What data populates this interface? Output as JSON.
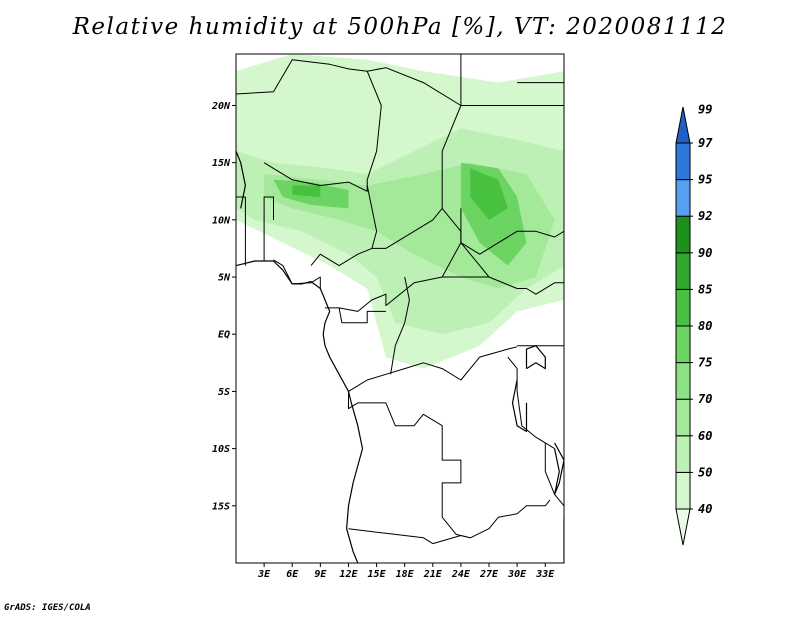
{
  "title": "Relative humidity at 500hPa [%], VT: 2020081112",
  "credit": "GrADS: IGES/COLA",
  "colors": {
    "coastline": "#000000",
    "background": "#ffffff"
  },
  "map": {
    "projection": "lat-lon",
    "lon_range": [
      0,
      35
    ],
    "lat_range": [
      -20,
      24.5
    ],
    "lon_ticks": [
      {
        "value": 3,
        "label": "3E"
      },
      {
        "value": 6,
        "label": "6E"
      },
      {
        "value": 9,
        "label": "9E"
      },
      {
        "value": 12,
        "label": "12E"
      },
      {
        "value": 15,
        "label": "15E"
      },
      {
        "value": 18,
        "label": "18E"
      },
      {
        "value": 21,
        "label": "21E"
      },
      {
        "value": 24,
        "label": "24E"
      },
      {
        "value": 27,
        "label": "27E"
      },
      {
        "value": 30,
        "label": "30E"
      },
      {
        "value": 33,
        "label": "33E"
      }
    ],
    "lat_ticks": [
      {
        "value": 20,
        "label": "20N"
      },
      {
        "value": 15,
        "label": "15N"
      },
      {
        "value": 10,
        "label": "10N"
      },
      {
        "value": 5,
        "label": "5N"
      },
      {
        "value": 0,
        "label": "EQ"
      },
      {
        "value": -5,
        "label": "5S"
      },
      {
        "value": -10,
        "label": "10S"
      },
      {
        "value": -15,
        "label": "15S"
      }
    ],
    "humidity_zones": [
      {
        "level": 50,
        "points": [
          [
            0,
            23
          ],
          [
            6,
            24.5
          ],
          [
            14,
            24
          ],
          [
            20,
            23
          ],
          [
            28,
            22
          ],
          [
            35,
            23
          ],
          [
            35,
            3
          ],
          [
            30,
            2
          ],
          [
            26,
            -1
          ],
          [
            20,
            -3
          ],
          [
            16,
            -2
          ],
          [
            14,
            4
          ],
          [
            10,
            6
          ],
          [
            5,
            8
          ],
          [
            0,
            10
          ]
        ]
      },
      {
        "level": 60,
        "points": [
          [
            0,
            16
          ],
          [
            4,
            15
          ],
          [
            10,
            14.5
          ],
          [
            14,
            14
          ],
          [
            19,
            16
          ],
          [
            24,
            18
          ],
          [
            30,
            17
          ],
          [
            35,
            16
          ],
          [
            35,
            6
          ],
          [
            31,
            4
          ],
          [
            27,
            1
          ],
          [
            22,
            0
          ],
          [
            17,
            1
          ],
          [
            15,
            5
          ],
          [
            12,
            7
          ],
          [
            7,
            9
          ],
          [
            2,
            10
          ],
          [
            0,
            11
          ]
        ]
      },
      {
        "level": 70,
        "points": [
          [
            3,
            14
          ],
          [
            9,
            13.5
          ],
          [
            14,
            13
          ],
          [
            20,
            14
          ],
          [
            25,
            15
          ],
          [
            31,
            14
          ],
          [
            34,
            10
          ],
          [
            32,
            5
          ],
          [
            28,
            4
          ],
          [
            24,
            5
          ],
          [
            19,
            7
          ],
          [
            15,
            9
          ],
          [
            11,
            10
          ],
          [
            6,
            11
          ],
          [
            3,
            12
          ]
        ]
      },
      {
        "level": 80,
        "points": [
          [
            4,
            13.5
          ],
          [
            8,
            13.3
          ],
          [
            12,
            12.6
          ],
          [
            12,
            11
          ],
          [
            8,
            11.3
          ],
          [
            5,
            12
          ]
        ]
      },
      {
        "level": 80,
        "points": [
          [
            24,
            15
          ],
          [
            28,
            14.5
          ],
          [
            30,
            12
          ],
          [
            31,
            8
          ],
          [
            29,
            6
          ],
          [
            26,
            8
          ],
          [
            24,
            11
          ]
        ]
      },
      {
        "level": 85,
        "points": [
          [
            25,
            14.5
          ],
          [
            28,
            13.5
          ],
          [
            29,
            11
          ],
          [
            27,
            10
          ],
          [
            25,
            12
          ]
        ]
      },
      {
        "level": 85,
        "points": [
          [
            6,
            13
          ],
          [
            9,
            13
          ],
          [
            9,
            12
          ],
          [
            6,
            12.2
          ]
        ]
      }
    ],
    "borders": [
      [
        [
          0,
          21
        ],
        [
          4,
          21.2
        ],
        [
          6,
          24
        ],
        [
          10,
          23.6
        ],
        [
          12,
          23.2
        ],
        [
          14,
          23
        ],
        [
          16,
          23.3
        ],
        [
          20,
          22
        ],
        [
          24,
          20
        ],
        [
          24,
          24.5
        ]
      ],
      [
        [
          3,
          15
        ],
        [
          6,
          13.5
        ],
        [
          9,
          13
        ],
        [
          12,
          13.3
        ],
        [
          14,
          12.5
        ],
        [
          14,
          13.5
        ],
        [
          15,
          16
        ],
        [
          15.5,
          20
        ],
        [
          14,
          23
        ]
      ],
      [
        [
          4,
          10
        ],
        [
          4,
          12
        ],
        [
          3,
          12
        ],
        [
          3,
          6.4
        ]
      ],
      [
        [
          1,
          6
        ],
        [
          1,
          12
        ],
        [
          0,
          12
        ]
      ],
      [
        [
          4,
          6.5
        ],
        [
          5,
          6
        ],
        [
          6,
          4.4
        ],
        [
          8,
          4.5
        ],
        [
          9,
          5
        ],
        [
          9,
          4
        ]
      ],
      [
        [
          14,
          13
        ],
        [
          14.5,
          11
        ],
        [
          15,
          9
        ],
        [
          14.5,
          7.5
        ],
        [
          13,
          7
        ],
        [
          11,
          6
        ],
        [
          9,
          7
        ],
        [
          8,
          6
        ]
      ],
      [
        [
          14.5,
          7.5
        ],
        [
          16,
          7.5
        ],
        [
          17,
          8
        ],
        [
          19,
          9
        ],
        [
          21,
          10
        ],
        [
          22,
          11
        ],
        [
          23,
          10
        ],
        [
          24,
          9
        ],
        [
          24,
          8
        ],
        [
          26,
          6
        ],
        [
          27,
          5
        ]
      ],
      [
        [
          24,
          20
        ],
        [
          22,
          16
        ],
        [
          22,
          12.5
        ],
        [
          22,
          11
        ]
      ],
      [
        [
          24,
          11
        ],
        [
          24,
          8
        ],
        [
          22,
          5
        ],
        [
          19,
          4.5
        ],
        [
          16,
          2.5
        ],
        [
          16,
          3.5
        ],
        [
          14.5,
          3
        ],
        [
          13,
          2
        ],
        [
          11,
          2.3
        ],
        [
          9.5,
          2.3
        ]
      ],
      [
        [
          22,
          5
        ],
        [
          25,
          5
        ],
        [
          27,
          5
        ],
        [
          30,
          4
        ],
        [
          31,
          4
        ],
        [
          32,
          3.5
        ],
        [
          34,
          4.5
        ],
        [
          35,
          4.5
        ]
      ],
      [
        [
          24,
          8
        ],
        [
          26,
          7
        ],
        [
          28,
          8
        ],
        [
          30,
          9
        ],
        [
          32,
          9
        ],
        [
          34,
          8.5
        ],
        [
          35,
          9
        ]
      ],
      [
        [
          24,
          20
        ],
        [
          30,
          20
        ],
        [
          35,
          20
        ],
        [
          35,
          24.5
        ]
      ],
      [
        [
          30,
          22
        ],
        [
          35,
          22
        ]
      ],
      [
        [
          12,
          -5
        ],
        [
          14,
          -4
        ],
        [
          16,
          -3.5
        ],
        [
          18,
          -3
        ],
        [
          20,
          -2.5
        ],
        [
          22,
          -3
        ],
        [
          24,
          -4
        ],
        [
          26,
          -2
        ],
        [
          29,
          -1.3
        ],
        [
          30,
          -1.1
        ]
      ],
      [
        [
          12,
          -5
        ],
        [
          12,
          -6.5
        ],
        [
          13,
          -6
        ],
        [
          16,
          -6
        ],
        [
          17,
          -8
        ],
        [
          19,
          -8
        ],
        [
          20,
          -7
        ],
        [
          22,
          -8
        ],
        [
          22,
          -11
        ],
        [
          24,
          -11
        ],
        [
          24,
          -13
        ],
        [
          22,
          -13
        ],
        [
          22,
          -16
        ],
        [
          23.5,
          -17.5
        ],
        [
          25,
          -17.8
        ]
      ],
      [
        [
          12,
          -17
        ],
        [
          16,
          -17.4
        ],
        [
          20,
          -17.8
        ],
        [
          21,
          -18.3
        ],
        [
          24,
          -17.6
        ],
        [
          25,
          -17.8
        ],
        [
          27,
          -17
        ],
        [
          28,
          -16
        ],
        [
          30,
          -15.7
        ]
      ],
      [
        [
          29,
          -2
        ],
        [
          30,
          -3
        ],
        [
          30,
          -5
        ],
        [
          30.5,
          -8
        ],
        [
          32,
          -9
        ],
        [
          33,
          -9.5
        ],
        [
          34,
          -10
        ]
      ],
      [
        [
          30,
          -1
        ],
        [
          31,
          -1
        ],
        [
          34,
          -1
        ],
        [
          35,
          -1
        ]
      ],
      [
        [
          33,
          -9.5
        ],
        [
          33,
          -12
        ],
        [
          34,
          -14
        ],
        [
          35,
          -15
        ]
      ],
      [
        [
          30,
          -15.7
        ],
        [
          31,
          -15
        ],
        [
          33,
          -15
        ],
        [
          33.5,
          -14.5
        ]
      ],
      [
        [
          11,
          2.3
        ],
        [
          11.3,
          1
        ],
        [
          14,
          1
        ],
        [
          14,
          2
        ],
        [
          16,
          2
        ]
      ],
      [
        [
          18,
          5
        ],
        [
          18.5,
          3
        ],
        [
          18,
          1
        ],
        [
          17,
          -1
        ],
        [
          16.5,
          -3.5
        ]
      ]
    ],
    "coastline": [
      [
        [
          0,
          6
        ],
        [
          1,
          6.2
        ],
        [
          2,
          6.4
        ],
        [
          4,
          6.4
        ],
        [
          5,
          5.6
        ],
        [
          6,
          4.4
        ],
        [
          7,
          4.4
        ],
        [
          8,
          4.6
        ],
        [
          9,
          4
        ],
        [
          9.5,
          3
        ],
        [
          10,
          2
        ],
        [
          9.5,
          1
        ],
        [
          9.3,
          0
        ],
        [
          9.5,
          -1
        ],
        [
          10,
          -2
        ],
        [
          11,
          -3.5
        ],
        [
          12,
          -5
        ],
        [
          12.3,
          -6
        ],
        [
          13,
          -8
        ],
        [
          13.5,
          -10
        ],
        [
          12.5,
          -13
        ],
        [
          12,
          -15
        ],
        [
          11.8,
          -17
        ],
        [
          12.5,
          -19
        ],
        [
          13,
          -20
        ]
      ],
      [
        [
          0,
          16
        ],
        [
          0.5,
          15
        ],
        [
          1,
          13
        ],
        [
          0.5,
          11
        ]
      ],
      [
        [
          35,
          -20
        ],
        [
          35,
          -16
        ]
      ],
      [
        [
          31,
          -3
        ],
        [
          32,
          -2.5
        ],
        [
          33,
          -3
        ],
        [
          33,
          -2
        ],
        [
          32,
          -1
        ],
        [
          31,
          -1.3
        ],
        [
          31,
          -3
        ]
      ],
      [
        [
          30,
          -4
        ],
        [
          29.5,
          -6
        ],
        [
          30,
          -8
        ],
        [
          31,
          -8.5
        ],
        [
          31,
          -6
        ]
      ],
      [
        [
          34,
          -9.5
        ],
        [
          35,
          -11
        ],
        [
          34.5,
          -13
        ],
        [
          34,
          -14
        ],
        [
          34.5,
          -12
        ],
        [
          34,
          -10
        ]
      ]
    ]
  },
  "colorbar": {
    "levels": [
      {
        "label": "40",
        "color": "#eafbe7"
      },
      {
        "label": "50",
        "color": "#d4f7cd"
      },
      {
        "label": "60",
        "color": "#bdf0b4"
      },
      {
        "label": "70",
        "color": "#a4e89a"
      },
      {
        "label": "75",
        "color": "#8de283"
      },
      {
        "label": "80",
        "color": "#6cd462"
      },
      {
        "label": "85",
        "color": "#48c040"
      },
      {
        "label": "90",
        "color": "#30a82e"
      },
      {
        "label": "92",
        "color": "#1c921c"
      },
      {
        "label": "95",
        "color": "#55a0f0"
      },
      {
        "label": "97",
        "color": "#2e78dc"
      },
      {
        "label": "99",
        "color": "#1e60c8"
      }
    ]
  }
}
